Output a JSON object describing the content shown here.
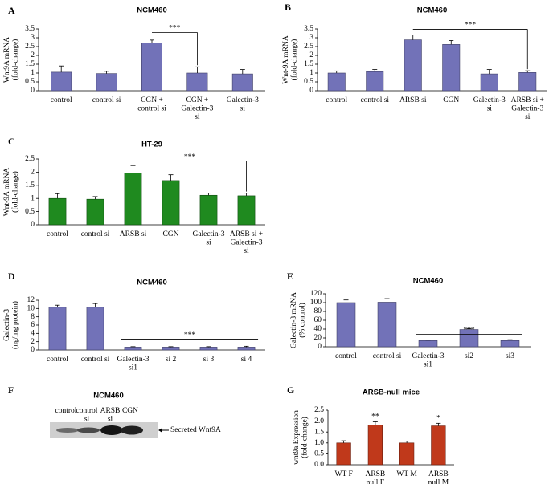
{
  "chart_data": [
    {
      "type": "bar",
      "panel": "A",
      "title": "NCM460",
      "y_label": "Wnt9A mRNA\n(fold-change)",
      "categories": [
        "control",
        "control si",
        "CGN +\ncontrol si",
        "CGN +\nGalectin-3\nsi",
        "Galectin-3\nsi"
      ],
      "values": [
        1.05,
        0.97,
        2.7,
        1.0,
        0.95
      ],
      "errors": [
        0.35,
        0.13,
        0.17,
        0.35,
        0.25
      ],
      "color": "#7272b8",
      "ylim": [
        0,
        3.5
      ],
      "yticks": [
        0,
        0.5,
        1,
        1.5,
        2,
        2.5,
        3,
        3.5
      ],
      "annotation": "***"
    },
    {
      "type": "bar",
      "panel": "B",
      "title": "NCM460",
      "y_label": "Wnt-9A mRNA\n(fold-change)",
      "categories": [
        "control",
        "control si",
        "ARSB si",
        "CGN",
        "Galectin-3\nsi",
        "ARSB si +\nGalectin-3\nsi"
      ],
      "values": [
        1.0,
        1.08,
        2.88,
        2.62,
        0.95,
        1.03
      ],
      "errors": [
        0.12,
        0.12,
        0.28,
        0.22,
        0.25,
        0.1
      ],
      "color": "#7272b8",
      "ylim": [
        0,
        3.5
      ],
      "yticks": [
        0,
        0.5,
        1,
        1.5,
        2,
        2.5,
        3,
        3.5
      ],
      "annotation": "***"
    },
    {
      "type": "bar",
      "panel": "C",
      "title": "HT-29",
      "y_label": "Wnt-9A mRNA\n(fold-change)",
      "categories": [
        "control",
        "control si",
        "ARSB si",
        "CGN",
        "Galectin-3\nsi",
        "ARSB si +\nGalectin-3\nsi"
      ],
      "values": [
        1.0,
        0.97,
        1.97,
        1.68,
        1.12,
        1.1
      ],
      "errors": [
        0.18,
        0.1,
        0.28,
        0.22,
        0.08,
        0.1
      ],
      "color": "#1f8a1f",
      "ylim": [
        0,
        2.5
      ],
      "yticks": [
        0,
        0.5,
        1,
        1.5,
        2,
        2.5
      ],
      "annotation": "***"
    },
    {
      "type": "bar",
      "panel": "D",
      "title": "NCM460",
      "y_label": "Galectin-3\n(ng/mg protein)",
      "categories": [
        "control",
        "control si",
        "Galectin-3\nsi1",
        "si 2",
        "si 3",
        "si 4"
      ],
      "values": [
        10.3,
        10.3,
        0.7,
        0.7,
        0.7,
        0.7
      ],
      "errors": [
        0.5,
        0.9,
        0.1,
        0.1,
        0.1,
        0.2
      ],
      "color": "#7272b8",
      "ylim": [
        0,
        12
      ],
      "yticks": [
        0,
        2,
        4,
        6,
        8,
        10,
        12
      ],
      "annotation": "***"
    },
    {
      "type": "bar",
      "panel": "E",
      "title": "NCM460",
      "y_label": "Galectin-3 mRNA\n(% control)",
      "categories": [
        "control",
        "control si",
        "Galectin-3\nsi1",
        "si2",
        "si3"
      ],
      "values": [
        100,
        101,
        14,
        39,
        14
      ],
      "errors": [
        6,
        8,
        1,
        2,
        2
      ],
      "color": "#7272b8",
      "ylim": [
        0,
        120
      ],
      "yticks": [
        0,
        20,
        40,
        60,
        80,
        100,
        120
      ],
      "annotation": "***"
    },
    {
      "type": "blot",
      "panel": "F",
      "title": "NCM460",
      "lanes": [
        "control",
        "control\nsi",
        "ARSB\nsi",
        "CGN"
      ],
      "band_label": "Secreted Wnt9A"
    },
    {
      "type": "bar",
      "panel": "G",
      "title": "ARSB-null mice",
      "y_label": "wnt9a Expression\n(fold-change)",
      "categories": [
        "WT F",
        "ARSB\nnull F",
        "WT M",
        "ARSB\nnull M"
      ],
      "values": [
        1.0,
        1.82,
        1.0,
        1.78
      ],
      "errors": [
        0.1,
        0.15,
        0.08,
        0.12
      ],
      "value_annotations": [
        null,
        "**",
        null,
        "*"
      ],
      "color": "#c0391b",
      "ylim": [
        0,
        2.5
      ],
      "yticks": [
        {
          "value": 0,
          "label": "0.0"
        },
        0.5,
        {
          "value": 1,
          "label": "1.0"
        },
        1.5,
        {
          "value": 2,
          "label": "2.0"
        },
        2.5
      ]
    }
  ]
}
